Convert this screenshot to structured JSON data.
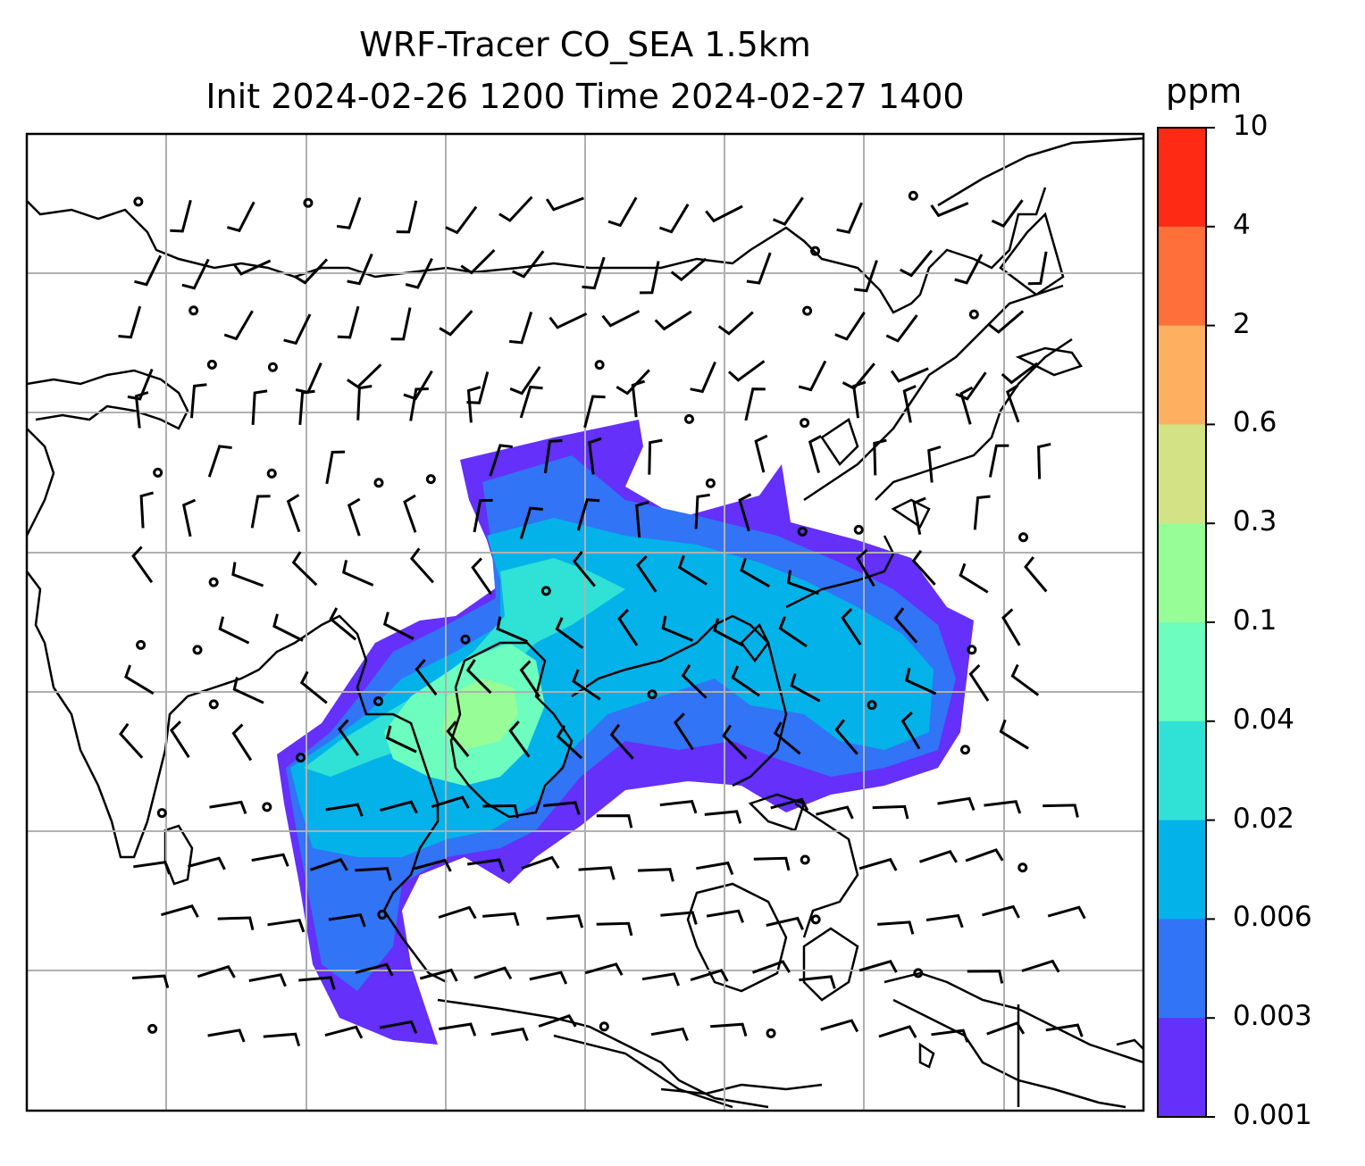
{
  "title": {
    "line1": "WRF-Tracer CO_SEA 1.5km",
    "line2": "Init 2024-02-26 1200 Time 2024-02-27 1400"
  },
  "colorbar": {
    "unit": "ppm",
    "labels": [
      "10",
      "4",
      "2",
      "0.6",
      "0.3",
      "0.1",
      "0.04",
      "0.02",
      "0.006",
      "0.003",
      "0.001"
    ],
    "colors": [
      "#ff2a14",
      "#ff6f3a",
      "#feb060",
      "#d2e284",
      "#97fd97",
      "#6cfdbf",
      "#30e1d5",
      "#04b2ea",
      "#3174f5",
      "#6430fa"
    ]
  },
  "map": {
    "field": "CO tracer concentration",
    "overlay": "wind barbs",
    "gridlines": true
  }
}
